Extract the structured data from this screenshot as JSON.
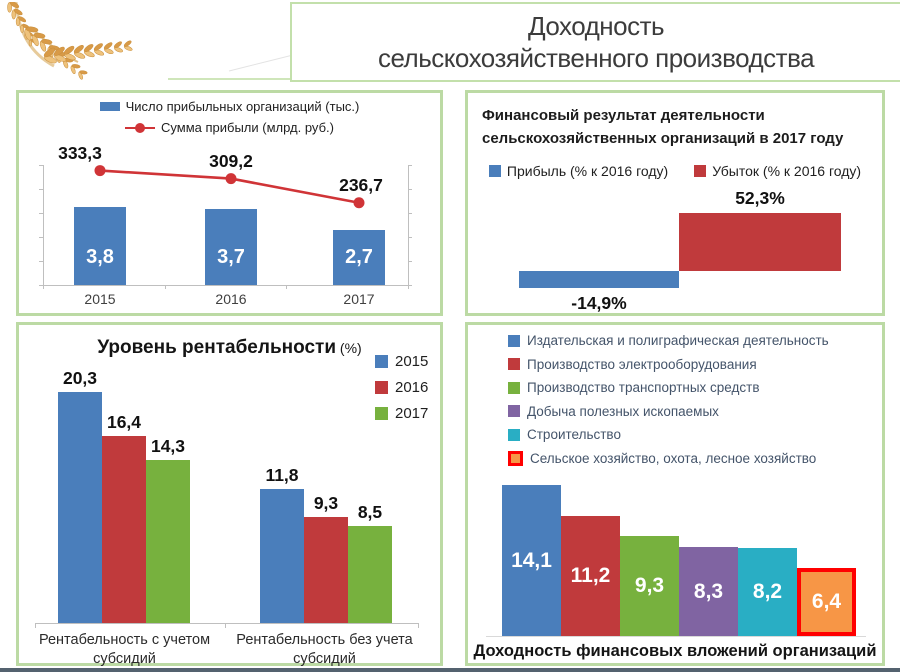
{
  "header": {
    "title_line1": "Доходность",
    "title_line2": "сельскохозяйственного производства",
    "wheat_icon": "wheat-ears"
  },
  "theme": {
    "panel_border": "#bcdaa4",
    "bottom_rule": "#54626f",
    "blue": "#4a7ebb",
    "red": "#c03a3c",
    "green": "#77b13e",
    "purple": "#8064a2",
    "cyan": "#29aec4",
    "orange": "#f79646",
    "highlight_red": "#ff0000",
    "line_red": "#d03437"
  },
  "chart_data": [
    {
      "id": "profitable-orgs-combo",
      "type": "bar",
      "combo": "bar+line",
      "categories": [
        "2015",
        "2016",
        "2017"
      ],
      "series": [
        {
          "name": "Число прибыльных организаций (тыс.)",
          "kind": "bar",
          "color": "#4a7ebb",
          "values": [
            3.8,
            3.7,
            2.7
          ],
          "labels": [
            "3,8",
            "3,7",
            "2,7"
          ]
        },
        {
          "name": "Сумма прибыли (млрд. руб.)",
          "kind": "line",
          "color": "#d03437",
          "values": [
            333.3,
            309.2,
            236.7
          ],
          "labels": [
            "333,3",
            "309,2",
            "236,7"
          ]
        }
      ],
      "legend_position": "top",
      "bar_ylim": [
        0,
        5.9
      ],
      "line_ylim": [
        -10,
        350
      ],
      "grid": false
    },
    {
      "id": "fin-result-2017",
      "type": "bar",
      "title": "Финансовый результат деятельности сельскохозяйственных организаций в 2017 году",
      "categories": [
        "Прибыль (% к 2016 году)",
        "Убыток (% к 2016 году)"
      ],
      "values": [
        -14.9,
        52.3
      ],
      "labels": [
        "-14,9%",
        "52,3%"
      ],
      "colors": [
        "#4a7ebb",
        "#c03a3c"
      ],
      "legend_position": "top",
      "ylim": [
        -20,
        60
      ],
      "grid": false
    },
    {
      "id": "rentability-level",
      "type": "bar",
      "title": "Уровень рентабельности",
      "title_suffix": "(%)",
      "categories": [
        "Рентабельность с учетом субсидий",
        "Рентабельность без учета субсидий"
      ],
      "series": [
        {
          "name": "2015",
          "color": "#4a7ebb",
          "values": [
            20.3,
            11.8
          ],
          "labels": [
            "20,3",
            "11,8"
          ]
        },
        {
          "name": "2016",
          "color": "#c03a3c",
          "values": [
            16.4,
            9.3
          ],
          "labels": [
            "16,4",
            "9,3"
          ]
        },
        {
          "name": "2017",
          "color": "#77b13e",
          "values": [
            14.3,
            8.5
          ],
          "labels": [
            "14,3",
            "8,5"
          ]
        }
      ],
      "legend_position": "right",
      "ylim": [
        0,
        22
      ],
      "grid": false
    },
    {
      "id": "fin-investments-yield",
      "type": "bar",
      "title": "Доходность финансовых вложений организаций",
      "items": [
        {
          "name": "Издательская и полиграфическая деятельность",
          "color": "#4a7ebb",
          "value": 14.1,
          "label": "14,1"
        },
        {
          "name": "Производство электрооборудования",
          "color": "#c03a3c",
          "value": 11.2,
          "label": "11,2"
        },
        {
          "name": "Производство транспортных средств",
          "color": "#77b13e",
          "value": 9.3,
          "label": "9,3"
        },
        {
          "name": "Добыча полезных ископаемых",
          "color": "#8064a2",
          "value": 8.3,
          "label": "8,3"
        },
        {
          "name": "Строительство",
          "color": "#29aec4",
          "value": 8.2,
          "label": "8,2"
        },
        {
          "name": "Сельское хозяйство, охота, лесное хозяйство",
          "color": "#f79646",
          "value": 6.4,
          "label": "6,4",
          "highlight_border": "#ff0000"
        }
      ],
      "legend_position": "top",
      "ylim": [
        0,
        15
      ],
      "grid": false
    }
  ]
}
